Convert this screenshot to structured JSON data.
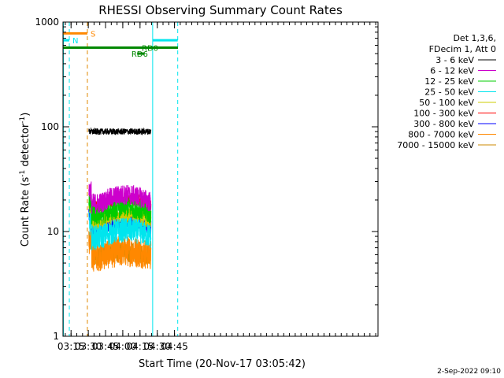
{
  "chart_data": {
    "type": "line",
    "title": "RHESSI Observing Summary Count Rates",
    "xlabel": "Start Time (20-Nov-17 03:05:42)",
    "ylabel": "Count Rate (s^-1 detector^-1)",
    "ylabel_parts": {
      "pre": "Count Rate (s",
      "sup1": "-1",
      "mid": " detector",
      "sup2": "-1",
      "post": ")"
    },
    "yscale": "log",
    "ylim": [
      1,
      1000
    ],
    "xlim_min": [
      188,
      462
    ],
    "x_ticks": [
      {
        "min": 195,
        "label": "03:15"
      },
      {
        "min": 210,
        "label": "03:30"
      },
      {
        "min": 225,
        "label": "03:45"
      },
      {
        "min": 240,
        "label": "04:00"
      },
      {
        "min": 255,
        "label": "04:15"
      },
      {
        "min": 270,
        "label": "04:30"
      },
      {
        "min": 285,
        "label": "04:45"
      }
    ],
    "y_ticks": [
      {
        "value": 1,
        "label": "1"
      },
      {
        "value": 10,
        "label": "10"
      },
      {
        "value": 100,
        "label": "100"
      },
      {
        "value": 1000,
        "label": "1000"
      }
    ],
    "data_start_min": 210.5,
    "data_end_min": 264.5,
    "series": [
      {
        "name": "3 - 6 keV",
        "color": "#000000",
        "level": 90,
        "noise": 0.03,
        "bump": 0.0
      },
      {
        "name": "6 - 12 keV",
        "color": "#cc00cc",
        "level": 19,
        "noise": 0.1,
        "bump": 0.18
      },
      {
        "name": "12 - 25 keV",
        "color": "#00cc00",
        "level": 14.5,
        "noise": 0.1,
        "bump": 0.18
      },
      {
        "name": "25 - 50 keV",
        "color": "#00e5ee",
        "level": 9,
        "noise": 0.12,
        "bump": 0.15
      },
      {
        "name": "50 - 100 keV",
        "color": "#cccc00",
        "level": 12.5,
        "noise": 0.08,
        "bump": 0.15
      },
      {
        "name": "100 - 300 keV",
        "color": "#ff0000",
        "level": 17.5,
        "noise": 0.06,
        "bump": 0.18
      },
      {
        "name": "300 - 800 keV",
        "color": "#0000ff",
        "level": 11,
        "noise": 0.07,
        "bump": 0.15
      },
      {
        "name": "800 - 7000 keV",
        "color": "#ff8800",
        "level": 6,
        "noise": 0.15,
        "bump": 0.08
      },
      {
        "name": "7000 - 15000 keV",
        "color": "#cc8800",
        "level": 6,
        "noise": 0.1,
        "bump": 0.05
      }
    ],
    "vertical_lines": [
      {
        "min": 188.4,
        "color": "#00e5ee",
        "style": "solid"
      },
      {
        "min": 193.5,
        "color": "#00e5ee",
        "style": "dashed"
      },
      {
        "min": 209.2,
        "color": "#e08800",
        "style": "dashed"
      },
      {
        "min": 266.0,
        "color": "#00e5ee",
        "style": "solid"
      },
      {
        "min": 287.8,
        "color": "#00e5ee",
        "style": "dashed"
      }
    ],
    "markers": [
      {
        "label": "S",
        "color": "#ff8800",
        "y": 780,
        "start_min": 188,
        "end_min": 209.2
      },
      {
        "label": "N",
        "color": "#00e5ee",
        "y": 670,
        "start_min": 188,
        "end_min": 193.5
      },
      {
        "label": "N",
        "color": "#00e5ee",
        "y": 670,
        "start_min": 266,
        "end_min": 287.8,
        "hide_label": true
      },
      {
        "label": "RD0",
        "color": "#008800",
        "y": 570,
        "start_min": 188,
        "end_min": 288,
        "label_at_min": 256.5
      },
      {
        "label": "RD6",
        "color": "#008800",
        "y": 500,
        "start_min": 252.5,
        "end_min": 259,
        "label_at_min": 247.5,
        "label_left": true
      }
    ],
    "legend_header": [
      "Det 1,3,6,",
      "FDecim 1, Att 0"
    ],
    "legend_placement": "right",
    "footer_date": "2-Sep-2022 09:10"
  }
}
